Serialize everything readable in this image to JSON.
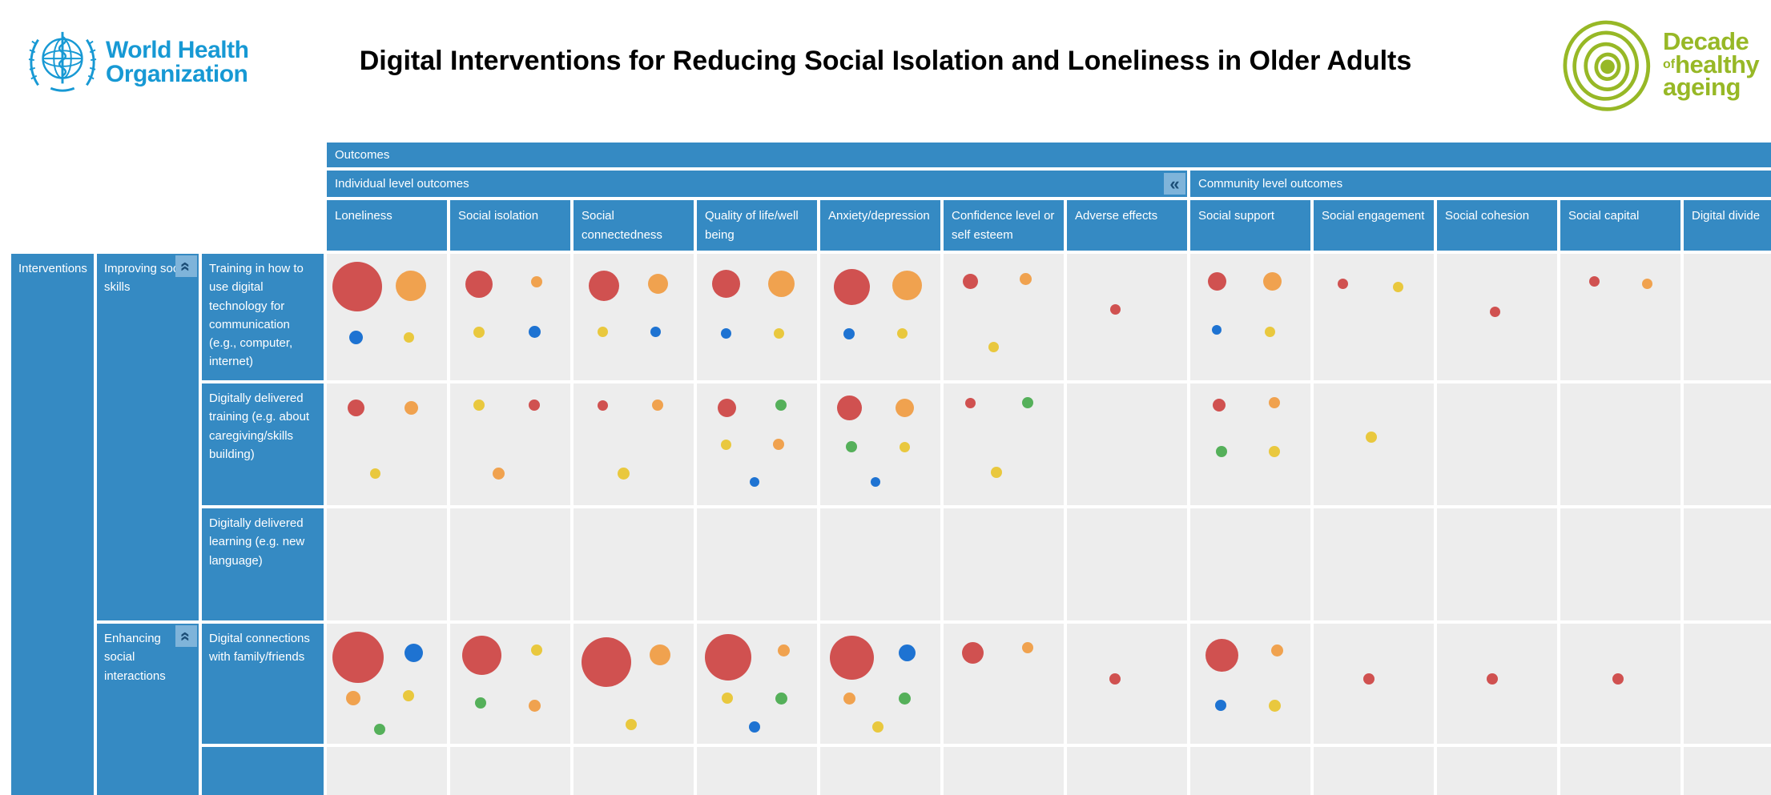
{
  "title": "Digital Interventions for Reducing Social Isolation and Loneliness in Older Adults",
  "branding": {
    "who": {
      "name_line1": "World Health",
      "name_line2": "Organization",
      "color": "#1799d4"
    },
    "decade": {
      "word1": "Decade",
      "word2": "of",
      "word3": "healthy",
      "word4": "ageing",
      "color": "#97b826"
    }
  },
  "matrix": {
    "outcomes_header": "Outcomes",
    "individual_header": "Individual level outcomes",
    "community_header": "Community level outcomes",
    "collapse_glyph": "«",
    "interventions_header": "Interventions",
    "column_labels": [
      "Loneliness",
      "Social isolation",
      "Social connectedness",
      "Quality of life/well being",
      "Anxiety/depression",
      "Confidence level or self esteem",
      "Adverse effects",
      "Social support",
      "Social engagement",
      "Social cohesion",
      "Social capital",
      "Digital divide"
    ],
    "groups": [
      {
        "label": "Improving social skills",
        "rows": [
          "Training in how to use digital technology for communication (e.g., computer, internet)",
          "Digitally delivered training (e.g. about caregiving/skills building)",
          "Digitally delivered learning (e.g. new language)"
        ]
      },
      {
        "label": "Enhancing social interactions",
        "rows": [
          "Digital connections with family/friends"
        ]
      }
    ],
    "colors": {
      "header_blue": "#358ac3",
      "collapse_bg": "#7fb4da",
      "collapse_glyph_color": "#1c4e77",
      "cell_gray": "#ededed"
    }
  },
  "chart_data": {
    "type": "bubble-matrix",
    "title": "Digital Interventions for Reducing Social Isolation and Loneliness in Older Adults",
    "columns": [
      "Loneliness",
      "Social isolation",
      "Social connectedness",
      "Quality of life/well being",
      "Anxiety/depression",
      "Confidence level or self esteem",
      "Adverse effects",
      "Social support",
      "Social engagement",
      "Social cohesion",
      "Social capital",
      "Digital divide"
    ],
    "rows": [
      "Training in how to use digital technology for communication (e.g., computer, internet)",
      "Digitally delivered training (e.g. about caregiving/skills building)",
      "Digitally delivered learning (e.g. new language)",
      "Digital connections with family/friends"
    ],
    "bubble_colors": {
      "red": "#d05150",
      "orange": "#f0a24f",
      "yellow": "#e9c83e",
      "green": "#55b05a",
      "blue": "#1e73d2"
    },
    "grid_rows_rendered": 5,
    "cells": [
      {
        "r": 0,
        "c": 0,
        "bubbles": [
          [
            "red",
            62,
            25,
            26
          ],
          [
            "orange",
            38,
            70,
            25
          ],
          [
            "blue",
            17,
            24,
            66
          ],
          [
            "yellow",
            13,
            68,
            66
          ]
        ]
      },
      {
        "r": 0,
        "c": 1,
        "bubbles": [
          [
            "red",
            34,
            24,
            24
          ],
          [
            "orange",
            14,
            72,
            22
          ],
          [
            "yellow",
            14,
            24,
            62
          ],
          [
            "blue",
            15,
            70,
            62
          ]
        ]
      },
      {
        "r": 0,
        "c": 2,
        "bubbles": [
          [
            "red",
            38,
            25,
            25
          ],
          [
            "orange",
            25,
            70,
            24
          ],
          [
            "yellow",
            13,
            24,
            62
          ],
          [
            "blue",
            13,
            68,
            62
          ]
        ]
      },
      {
        "r": 0,
        "c": 3,
        "bubbles": [
          [
            "red",
            35,
            24,
            24
          ],
          [
            "orange",
            33,
            70,
            24
          ],
          [
            "blue",
            13,
            24,
            63
          ],
          [
            "yellow",
            13,
            68,
            63
          ]
        ]
      },
      {
        "r": 0,
        "c": 4,
        "bubbles": [
          [
            "red",
            45,
            26,
            26
          ],
          [
            "orange",
            37,
            72,
            25
          ],
          [
            "blue",
            14,
            24,
            63
          ],
          [
            "yellow",
            13,
            68,
            63
          ]
        ]
      },
      {
        "r": 0,
        "c": 5,
        "bubbles": [
          [
            "red",
            19,
            22,
            22
          ],
          [
            "orange",
            15,
            68,
            20
          ],
          [
            "yellow",
            13,
            42,
            74
          ]
        ]
      },
      {
        "r": 0,
        "c": 6,
        "bubbles": [
          [
            "red",
            13,
            40,
            44
          ]
        ]
      },
      {
        "r": 0,
        "c": 7,
        "bubbles": [
          [
            "red",
            23,
            22,
            22
          ],
          [
            "orange",
            23,
            68,
            22
          ],
          [
            "blue",
            12,
            22,
            60
          ],
          [
            "yellow",
            13,
            66,
            62
          ]
        ]
      },
      {
        "r": 0,
        "c": 8,
        "bubbles": [
          [
            "red",
            13,
            24,
            24
          ],
          [
            "yellow",
            13,
            70,
            26
          ]
        ]
      },
      {
        "r": 0,
        "c": 9,
        "bubbles": [
          [
            "red",
            13,
            48,
            46
          ]
        ]
      },
      {
        "r": 0,
        "c": 10,
        "bubbles": [
          [
            "red",
            13,
            28,
            22
          ],
          [
            "orange",
            13,
            72,
            24
          ]
        ]
      },
      {
        "r": 1,
        "c": 0,
        "bubbles": [
          [
            "red",
            21,
            24,
            20
          ],
          [
            "orange",
            17,
            70,
            20
          ],
          [
            "yellow",
            13,
            40,
            74
          ]
        ]
      },
      {
        "r": 1,
        "c": 1,
        "bubbles": [
          [
            "yellow",
            14,
            24,
            18
          ],
          [
            "red",
            14,
            70,
            18
          ],
          [
            "orange",
            15,
            40,
            74
          ]
        ]
      },
      {
        "r": 1,
        "c": 2,
        "bubbles": [
          [
            "red",
            13,
            24,
            18
          ],
          [
            "orange",
            14,
            70,
            18
          ],
          [
            "yellow",
            15,
            42,
            74
          ]
        ]
      },
      {
        "r": 1,
        "c": 3,
        "bubbles": [
          [
            "red",
            23,
            25,
            20
          ],
          [
            "green",
            14,
            70,
            18
          ],
          [
            "yellow",
            13,
            24,
            50
          ],
          [
            "orange",
            14,
            68,
            50
          ],
          [
            "blue",
            12,
            48,
            81
          ]
        ]
      },
      {
        "r": 1,
        "c": 4,
        "bubbles": [
          [
            "red",
            31,
            24,
            20
          ],
          [
            "orange",
            23,
            70,
            20
          ],
          [
            "green",
            14,
            26,
            52
          ],
          [
            "yellow",
            13,
            70,
            52
          ],
          [
            "blue",
            12,
            46,
            81
          ]
        ]
      },
      {
        "r": 1,
        "c": 5,
        "bubbles": [
          [
            "red",
            13,
            22,
            16
          ],
          [
            "green",
            14,
            70,
            16
          ],
          [
            "yellow",
            14,
            44,
            73
          ]
        ]
      },
      {
        "r": 1,
        "c": 7,
        "bubbles": [
          [
            "red",
            16,
            24,
            18
          ],
          [
            "orange",
            14,
            70,
            16
          ],
          [
            "green",
            14,
            26,
            56
          ],
          [
            "yellow",
            14,
            70,
            56
          ]
        ]
      },
      {
        "r": 1,
        "c": 8,
        "bubbles": [
          [
            "yellow",
            14,
            48,
            44
          ]
        ]
      },
      {
        "r": 3,
        "c": 0,
        "bubbles": [
          [
            "red",
            64,
            26,
            28
          ],
          [
            "blue",
            23,
            72,
            24
          ],
          [
            "orange",
            18,
            22,
            62
          ],
          [
            "yellow",
            14,
            68,
            60
          ],
          [
            "green",
            14,
            44,
            88
          ]
        ]
      },
      {
        "r": 3,
        "c": 1,
        "bubbles": [
          [
            "red",
            49,
            26,
            26
          ],
          [
            "yellow",
            14,
            72,
            22
          ],
          [
            "green",
            14,
            25,
            66
          ],
          [
            "orange",
            15,
            70,
            68
          ]
        ]
      },
      {
        "r": 3,
        "c": 2,
        "bubbles": [
          [
            "red",
            62,
            27,
            32
          ],
          [
            "orange",
            26,
            72,
            26
          ],
          [
            "yellow",
            14,
            48,
            84
          ]
        ]
      },
      {
        "r": 3,
        "c": 3,
        "bubbles": [
          [
            "red",
            58,
            26,
            28
          ],
          [
            "orange",
            15,
            72,
            22
          ],
          [
            "yellow",
            14,
            25,
            62
          ],
          [
            "green",
            15,
            70,
            62
          ],
          [
            "blue",
            14,
            48,
            86
          ]
        ]
      },
      {
        "r": 3,
        "c": 4,
        "bubbles": [
          [
            "red",
            55,
            26,
            28
          ],
          [
            "blue",
            21,
            72,
            24
          ],
          [
            "orange",
            15,
            24,
            62
          ],
          [
            "green",
            15,
            70,
            62
          ],
          [
            "yellow",
            14,
            48,
            86
          ]
        ]
      },
      {
        "r": 3,
        "c": 5,
        "bubbles": [
          [
            "red",
            27,
            24,
            24
          ],
          [
            "orange",
            14,
            70,
            20
          ]
        ]
      },
      {
        "r": 3,
        "c": 6,
        "bubbles": [
          [
            "red",
            14,
            40,
            46
          ]
        ]
      },
      {
        "r": 3,
        "c": 7,
        "bubbles": [
          [
            "red",
            41,
            26,
            26
          ],
          [
            "orange",
            15,
            72,
            22
          ],
          [
            "blue",
            14,
            25,
            68
          ],
          [
            "yellow",
            15,
            70,
            68
          ]
        ]
      },
      {
        "r": 3,
        "c": 8,
        "bubbles": [
          [
            "red",
            14,
            46,
            46
          ]
        ]
      },
      {
        "r": 3,
        "c": 9,
        "bubbles": [
          [
            "red",
            14,
            46,
            46
          ]
        ]
      },
      {
        "r": 3,
        "c": 10,
        "bubbles": [
          [
            "red",
            14,
            48,
            46
          ]
        ]
      }
    ]
  }
}
